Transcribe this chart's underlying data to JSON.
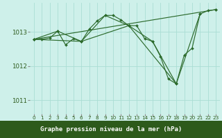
{
  "background_color": "#cef0ea",
  "grid_color": "#aaddd4",
  "line_color": "#2d6b2d",
  "marker_color": "#2d6b2d",
  "xlabel": "Graphe pression niveau de la mer (hPa)",
  "xlabel_bg": "#2d5a1b",
  "xlabel_fg": "#ffffff",
  "ylim": [
    1010.6,
    1013.85
  ],
  "xlim": [
    -0.5,
    23.5
  ],
  "yticks": [
    1011,
    1012,
    1013
  ],
  "ytick_labels": [
    "1011",
    "1012",
    "1013"
  ],
  "xticks": [
    0,
    1,
    2,
    3,
    4,
    5,
    6,
    7,
    8,
    9,
    10,
    11,
    12,
    13,
    14,
    15,
    16,
    17,
    18,
    19,
    20,
    21,
    22,
    23
  ],
  "series": [
    {
      "x": [
        0,
        1,
        2,
        3,
        4,
        5,
        6,
        7,
        8,
        9,
        10,
        11,
        12,
        13,
        14,
        15,
        16,
        17,
        18,
        19,
        20,
        21,
        22,
        23
      ],
      "y": [
        1012.78,
        1012.78,
        1012.82,
        1013.02,
        1012.62,
        1012.8,
        1012.72,
        1013.08,
        1013.32,
        1013.48,
        1013.48,
        1013.35,
        1013.18,
        1013.18,
        1012.8,
        1012.72,
        1012.28,
        1011.62,
        1011.48,
        1012.32,
        1012.52,
        1013.52,
        1013.62,
        1013.65
      ]
    },
    {
      "x": [
        0,
        3,
        6,
        9,
        12,
        15,
        18,
        21
      ],
      "y": [
        1012.78,
        1013.02,
        1012.72,
        1013.48,
        1013.18,
        1012.72,
        1011.48,
        1013.52
      ]
    },
    {
      "x": [
        0,
        6,
        12,
        18
      ],
      "y": [
        1012.78,
        1012.72,
        1013.18,
        1011.48
      ]
    },
    {
      "x": [
        0,
        23
      ],
      "y": [
        1012.78,
        1013.65
      ]
    }
  ]
}
